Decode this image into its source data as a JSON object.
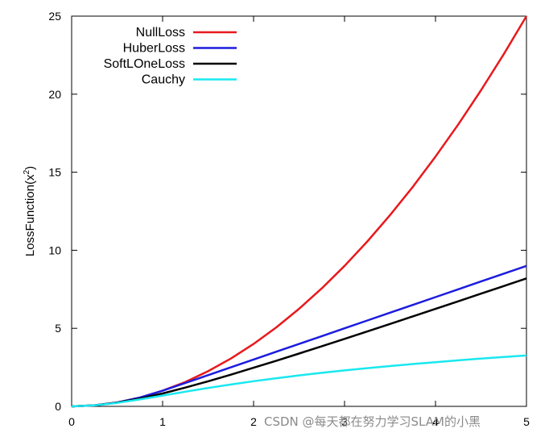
{
  "chart_data": {
    "type": "line",
    "ylabel_base": "LossFunction(x",
    "ylabel_sup": "2",
    "ylabel_tail": ")",
    "xlim": [
      0,
      5
    ],
    "ylim": [
      0,
      25
    ],
    "x_ticks": [
      0,
      1,
      2,
      3,
      4,
      5
    ],
    "y_ticks": [
      0,
      5,
      10,
      15,
      20,
      25
    ],
    "grid": false,
    "legend_position": "top-left",
    "series": [
      {
        "name": "NullLoss",
        "color": "#e8191d",
        "x": [
          0,
          0.25,
          0.5,
          0.75,
          1,
          1.25,
          1.5,
          1.75,
          2,
          2.25,
          2.5,
          2.75,
          3,
          3.25,
          3.5,
          3.75,
          4,
          4.25,
          4.5,
          4.75,
          5
        ],
        "y": [
          0,
          0.0625,
          0.25,
          0.5625,
          1,
          1.5625,
          2.25,
          3.0625,
          4,
          5.0625,
          6.25,
          7.5625,
          9,
          10.5625,
          12.25,
          14.0625,
          16,
          18.0625,
          20.25,
          22.5625,
          25
        ]
      },
      {
        "name": "HuberLoss",
        "color": "#1c1ce0",
        "x": [
          0,
          0.25,
          0.5,
          0.75,
          1,
          1.25,
          1.5,
          1.75,
          2,
          2.25,
          2.5,
          2.75,
          3,
          3.25,
          3.5,
          3.75,
          4,
          4.25,
          4.5,
          4.75,
          5
        ],
        "y": [
          0,
          0.0625,
          0.25,
          0.5625,
          1,
          1.5,
          2,
          2.5,
          3,
          3.5,
          4,
          4.5,
          5,
          5.5,
          6,
          6.5,
          7,
          7.5,
          8,
          8.5,
          9
        ]
      },
      {
        "name": "SoftLOneLoss",
        "color": "#000000",
        "x": [
          0,
          0.25,
          0.5,
          0.75,
          1,
          1.25,
          1.5,
          1.75,
          2,
          2.25,
          2.5,
          2.75,
          3,
          3.25,
          3.5,
          3.75,
          4,
          4.25,
          4.5,
          4.75,
          5
        ],
        "y": [
          0,
          0.0615,
          0.236,
          0.5,
          0.828,
          1.201,
          1.606,
          2.031,
          2.472,
          2.924,
          3.385,
          3.852,
          4.325,
          4.801,
          5.281,
          5.763,
          6.246,
          6.732,
          7.22,
          7.708,
          8.198
        ]
      },
      {
        "name": "Cauchy",
        "color": "#19e8f0",
        "x": [
          0,
          0.25,
          0.5,
          0.75,
          1,
          1.25,
          1.5,
          1.75,
          2,
          2.25,
          2.5,
          2.75,
          3,
          3.25,
          3.5,
          3.75,
          4,
          4.25,
          4.5,
          4.75,
          5
        ],
        "y": [
          0,
          0.0606,
          0.223,
          0.446,
          0.693,
          0.94,
          1.179,
          1.402,
          1.609,
          1.801,
          1.981,
          2.148,
          2.303,
          2.447,
          2.583,
          2.71,
          2.833,
          2.948,
          3.058,
          3.162,
          3.258
        ]
      }
    ]
  },
  "watermark": "CSDN @每天都在努力学习SLAM的小黑"
}
